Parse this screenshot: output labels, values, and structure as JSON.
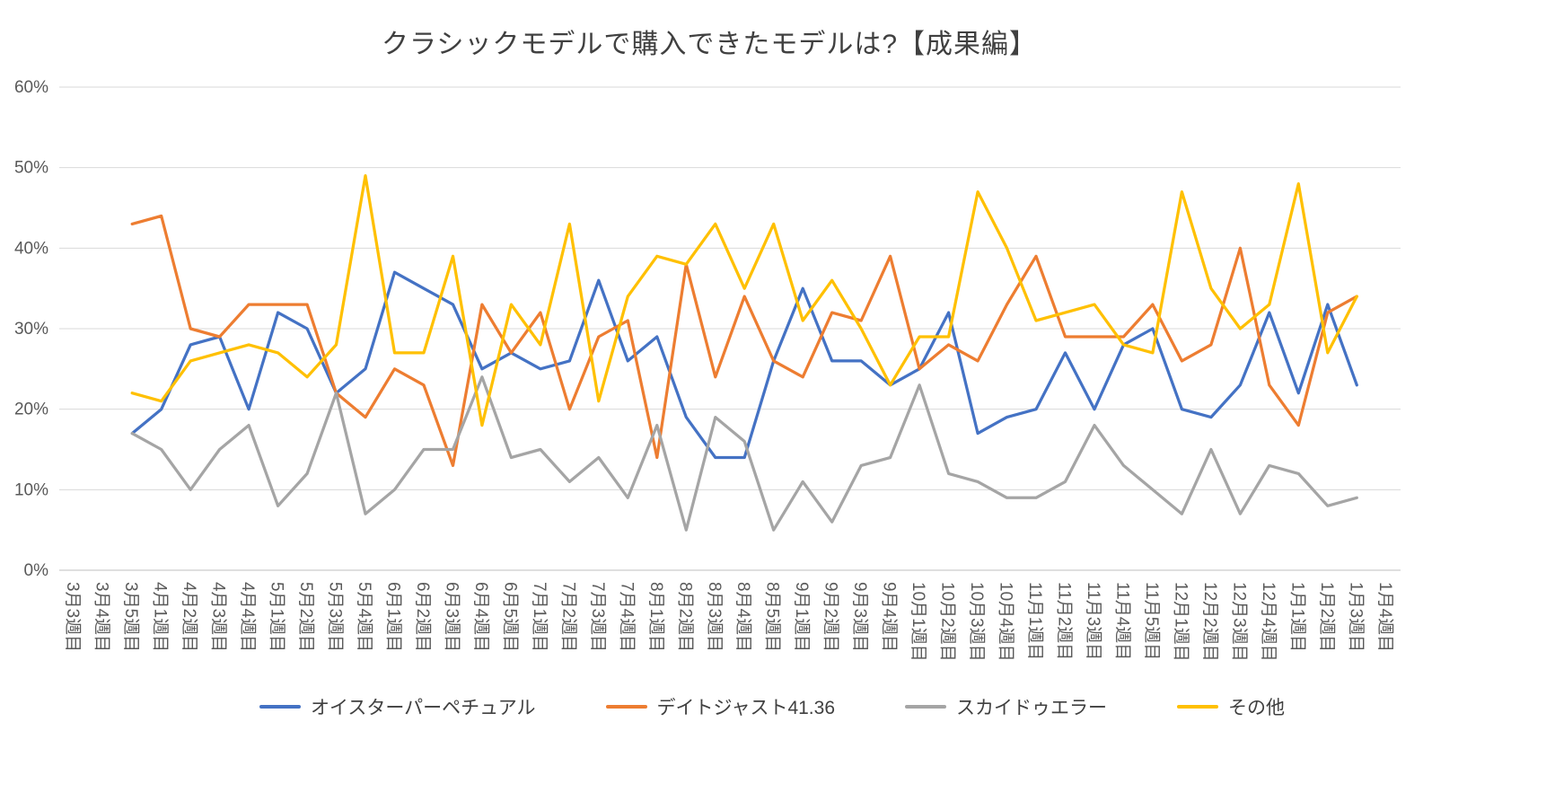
{
  "chart_data": {
    "type": "line",
    "title": "クラシックモデルで購入できたモデルは?【成果編】",
    "xlabel": "",
    "ylabel": "",
    "ylim": [
      0,
      60
    ],
    "y_tick_interval": 10,
    "y_unit": "%",
    "grid": true,
    "legend_position": "bottom",
    "colors": {
      "grid": "#D9D9D9",
      "axis": "#BFBFBF",
      "tick_text": "#595959",
      "title_text": "#404040"
    },
    "categories": [
      "3月3週目",
      "3月4週目",
      "3月5週目",
      "4月1週目",
      "4月2週目",
      "4月3週目",
      "4月4週目",
      "5月1週目",
      "5月2週目",
      "5月3週目",
      "5月4週目",
      "6月1週目",
      "6月2週目",
      "6月3週目",
      "6月4週目",
      "6月5週目",
      "7月1週目",
      "7月2週目",
      "7月3週目",
      "7月4週目",
      "8月1週目",
      "8月2週目",
      "8月3週目",
      "8月4週目",
      "8月5週目",
      "9月1週目",
      "9月2週目",
      "9月3週目",
      "9月4週目",
      "10月1週目",
      "10月2週目",
      "10月3週目",
      "10月4週目",
      "11月1週目",
      "11月2週目",
      "11月3週目",
      "11月4週目",
      "11月5週目",
      "12月1週目",
      "12月2週目",
      "12月3週目",
      "12月4週目",
      "1月1週目",
      "1月2週目",
      "1月3週目",
      "1月4週目"
    ],
    "series": [
      {
        "id": "oyster-perpetual",
        "name": "オイスターパーペチュアル",
        "color": "#4472C4",
        "values": [
          null,
          null,
          17,
          20,
          28,
          29,
          20,
          32,
          30,
          22,
          25,
          37,
          35,
          33,
          25,
          27,
          25,
          26,
          36,
          26,
          29,
          19,
          14,
          14,
          26,
          35,
          26,
          26,
          23,
          25,
          32,
          17,
          19,
          20,
          27,
          20,
          28,
          30,
          20,
          19,
          23,
          32,
          22,
          33,
          23,
          null
        ]
      },
      {
        "id": "datejust-41-36",
        "name": "デイトジャスト41.36",
        "color": "#ED7D31",
        "values": [
          null,
          null,
          43,
          44,
          30,
          29,
          33,
          33,
          33,
          22,
          19,
          25,
          23,
          13,
          33,
          27,
          32,
          20,
          29,
          31,
          14,
          38,
          24,
          34,
          26,
          24,
          32,
          31,
          39,
          25,
          28,
          26,
          33,
          39,
          29,
          29,
          29,
          33,
          26,
          28,
          40,
          23,
          18,
          32,
          34,
          null
        ]
      },
      {
        "id": "sky-dweller",
        "name": "スカイドゥエラー",
        "color": "#A5A5A5",
        "values": [
          null,
          null,
          17,
          15,
          10,
          15,
          18,
          8,
          12,
          22,
          7,
          10,
          15,
          15,
          24,
          14,
          15,
          11,
          14,
          9,
          18,
          5,
          19,
          16,
          5,
          11,
          6,
          13,
          14,
          23,
          12,
          11,
          9,
          9,
          11,
          18,
          13,
          10,
          7,
          15,
          7,
          13,
          12,
          8,
          9,
          null
        ]
      },
      {
        "id": "other",
        "name": "その他",
        "color": "#FFC000",
        "values": [
          null,
          null,
          22,
          21,
          26,
          27,
          28,
          27,
          24,
          28,
          49,
          27,
          27,
          39,
          18,
          33,
          28,
          43,
          21,
          34,
          39,
          38,
          43,
          35,
          43,
          31,
          36,
          30,
          23,
          29,
          29,
          47,
          40,
          31,
          32,
          33,
          28,
          27,
          47,
          35,
          30,
          33,
          48,
          27,
          34,
          null
        ]
      }
    ]
  }
}
